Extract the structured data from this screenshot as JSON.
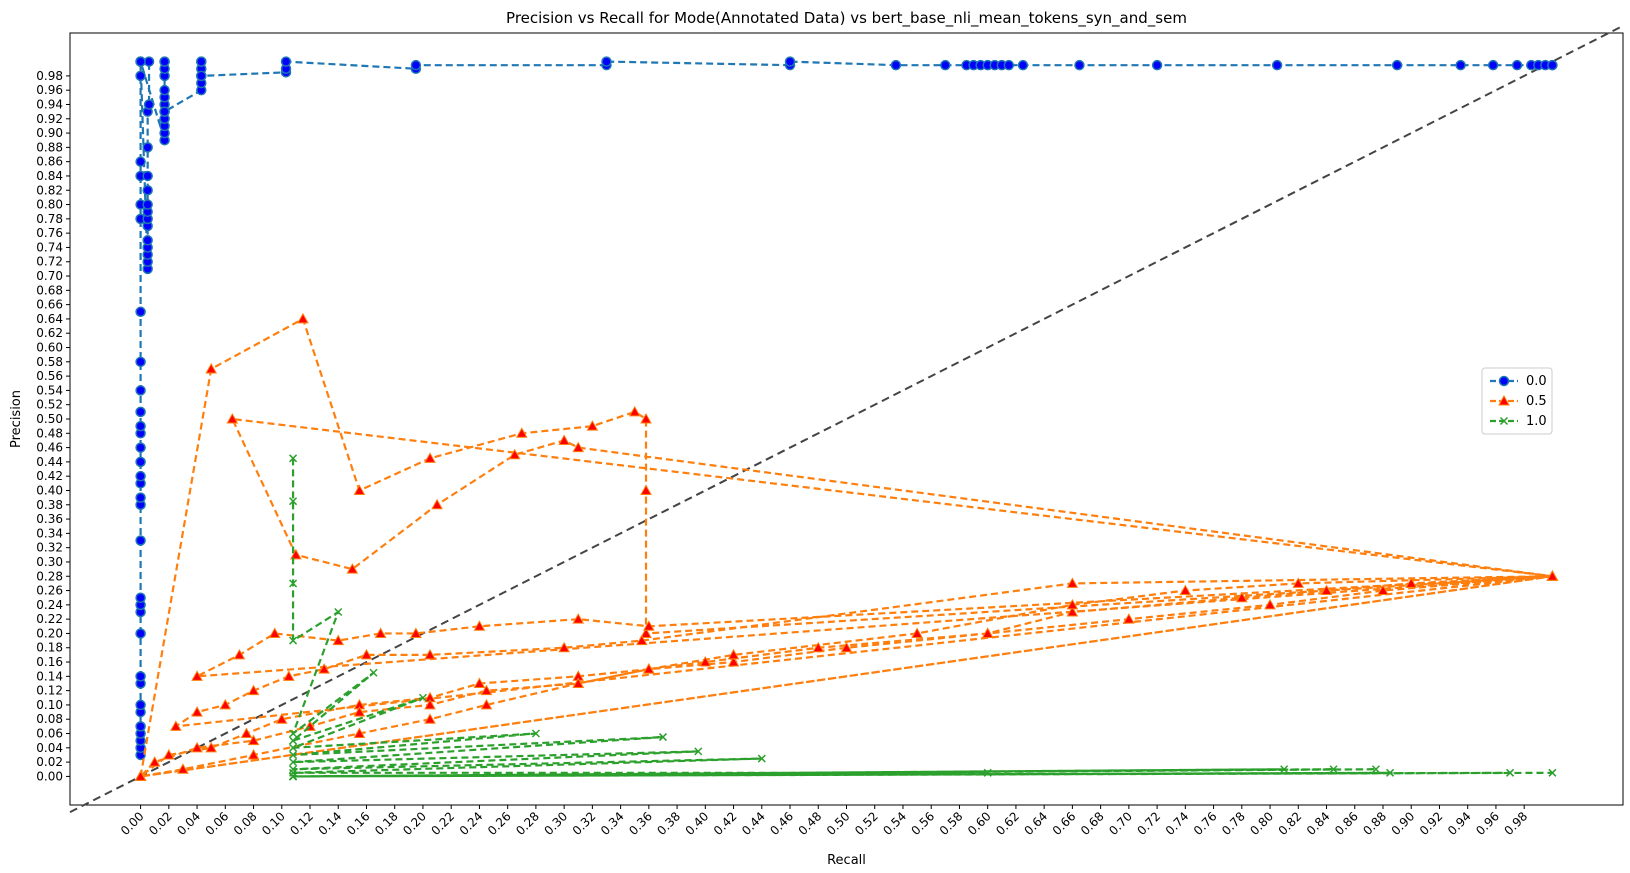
{
  "chart_data": {
    "type": "line",
    "title": "Precision vs Recall for Mode(Annotated Data) vs bert_base_nli_mean_tokens_syn_and_sem",
    "xlabel": "Recall",
    "ylabel": "Precision",
    "xlim": [
      -0.05,
      1.05
    ],
    "ylim": [
      -0.04,
      1.04
    ],
    "xticks": [
      "0.00",
      "0.02",
      "0.04",
      "0.06",
      "0.08",
      "0.10",
      "0.12",
      "0.14",
      "0.16",
      "0.18",
      "0.20",
      "0.22",
      "0.24",
      "0.26",
      "0.28",
      "0.30",
      "0.32",
      "0.34",
      "0.36",
      "0.38",
      "0.40",
      "0.42",
      "0.44",
      "0.46",
      "0.48",
      "0.50",
      "0.52",
      "0.54",
      "0.56",
      "0.58",
      "0.60",
      "0.62",
      "0.64",
      "0.66",
      "0.68",
      "0.70",
      "0.72",
      "0.74",
      "0.76",
      "0.78",
      "0.80",
      "0.82",
      "0.84",
      "0.86",
      "0.88",
      "0.90",
      "0.92",
      "0.94",
      "0.96",
      "0.98"
    ],
    "yticks": [
      "0.00",
      "0.02",
      "0.04",
      "0.06",
      "0.08",
      "0.10",
      "0.12",
      "0.14",
      "0.16",
      "0.18",
      "0.20",
      "0.22",
      "0.24",
      "0.26",
      "0.28",
      "0.30",
      "0.32",
      "0.34",
      "0.36",
      "0.38",
      "0.40",
      "0.42",
      "0.44",
      "0.46",
      "0.48",
      "0.50",
      "0.52",
      "0.54",
      "0.56",
      "0.58",
      "0.60",
      "0.62",
      "0.64",
      "0.66",
      "0.68",
      "0.70",
      "0.72",
      "0.74",
      "0.76",
      "0.78",
      "0.80",
      "0.82",
      "0.84",
      "0.86",
      "0.88",
      "0.90",
      "0.92",
      "0.94",
      "0.96",
      "0.98"
    ],
    "grid": false,
    "legend_position": "center-right",
    "reference_line": {
      "x": [
        -0.05,
        1.05
      ],
      "y": [
        -0.05,
        1.05
      ],
      "color": "#444444",
      "dash": "dashed"
    },
    "series": [
      {
        "name": "0.0",
        "color": "#1f77b4",
        "marker_face": "#0000ff",
        "marker": "circle",
        "x": [
          0.0,
          0.0,
          0.0,
          0.0,
          0.0,
          0.0,
          0.0,
          0.0,
          0.0,
          0.0,
          0.0,
          0.0,
          0.0,
          0.0,
          0.0,
          0.0,
          0.0,
          0.0,
          0.0,
          0.0,
          0.0,
          0.0,
          0.0,
          0.0,
          0.0,
          0.0,
          0.0,
          0.0,
          0.0,
          0.0,
          0.0,
          0.0,
          0.0,
          0.0,
          0.005,
          0.005,
          0.005,
          0.005,
          0.005,
          0.005,
          0.005,
          0.005,
          0.005,
          0.005,
          0.005,
          0.005,
          0.005,
          0.006,
          0.006,
          0.0,
          0.017,
          0.017,
          0.017,
          0.017,
          0.017,
          0.017,
          0.017,
          0.017,
          0.017,
          0.017,
          0.017,
          0.017,
          0.017,
          0.043,
          0.043,
          0.043,
          0.043,
          0.043,
          0.043,
          0.043,
          0.103,
          0.103,
          0.103,
          0.195,
          0.195,
          0.33,
          0.33,
          0.46,
          0.46,
          0.535,
          0.57,
          0.585,
          0.59,
          0.595,
          0.6,
          0.605,
          0.61,
          0.615,
          0.625,
          0.665,
          0.72,
          0.805,
          0.89,
          0.935,
          0.958,
          0.975,
          0.985,
          0.99,
          0.995,
          1.0,
          1.0
        ],
        "y": [
          0.03,
          0.04,
          0.05,
          0.06,
          0.07,
          0.09,
          0.1,
          0.13,
          0.14,
          0.2,
          0.23,
          0.24,
          0.25,
          0.33,
          0.38,
          0.39,
          0.41,
          0.42,
          0.44,
          0.46,
          0.48,
          0.49,
          0.51,
          0.54,
          0.58,
          0.65,
          0.78,
          0.8,
          0.84,
          0.86,
          0.98,
          1.0,
          1.0,
          1.0,
          0.71,
          0.72,
          0.73,
          0.74,
          0.75,
          0.77,
          0.78,
          0.79,
          0.8,
          0.82,
          0.84,
          0.88,
          0.93,
          0.94,
          1.0,
          1.0,
          0.89,
          0.9,
          0.91,
          0.92,
          0.93,
          0.94,
          0.95,
          0.96,
          0.98,
          0.99,
          1.0,
          1.0,
          0.93,
          0.96,
          0.97,
          0.98,
          0.99,
          1.0,
          1.0,
          0.98,
          0.985,
          0.99,
          1.0,
          0.99,
          0.995,
          0.995,
          1.0,
          0.995,
          1.0,
          0.995,
          0.995,
          0.995,
          0.995,
          0.995,
          0.995,
          0.995,
          0.995,
          0.995,
          0.995,
          0.995,
          0.995,
          0.995,
          0.995,
          0.995,
          0.995,
          0.995,
          0.995,
          0.995,
          0.995,
          0.995,
          0.995
        ]
      },
      {
        "name": "0.5",
        "color": "#ff7f0e",
        "marker_face": "#ff0000",
        "marker": "triangle",
        "x": [
          0.0,
          0.05,
          0.115,
          0.155,
          0.205,
          0.27,
          0.32,
          0.35,
          0.358,
          0.358,
          0.358,
          1.0,
          0.065,
          0.11,
          0.15,
          0.21,
          0.265,
          0.3,
          0.31,
          1.0,
          0.04,
          0.07,
          0.095,
          0.14,
          0.17,
          0.195,
          0.24,
          0.31,
          0.36,
          1.0,
          0.025,
          0.04,
          0.06,
          0.08,
          0.105,
          0.13,
          0.16,
          0.205,
          0.3,
          0.355,
          0.66,
          1.0,
          0.0,
          0.02,
          0.05,
          0.075,
          0.1,
          0.155,
          0.205,
          0.24,
          0.31,
          0.36,
          0.4,
          0.48,
          0.6,
          0.66,
          0.78,
          0.84,
          0.9,
          1.0,
          0.0,
          0.01,
          0.04,
          0.08,
          0.12,
          0.155,
          0.205,
          0.245,
          0.31,
          0.36,
          0.42,
          0.5,
          0.6,
          0.7,
          0.8,
          0.88,
          1.0,
          0.0,
          0.03,
          0.08,
          0.155,
          0.205,
          0.245,
          0.31,
          0.36,
          0.42,
          0.55,
          0.66,
          0.74,
          0.82,
          1.0
        ],
        "y": [
          0.0,
          0.57,
          0.64,
          0.4,
          0.445,
          0.48,
          0.49,
          0.51,
          0.5,
          0.4,
          0.2,
          0.28,
          0.5,
          0.31,
          0.29,
          0.38,
          0.45,
          0.47,
          0.46,
          0.28,
          0.14,
          0.17,
          0.2,
          0.19,
          0.2,
          0.2,
          0.21,
          0.22,
          0.21,
          0.28,
          0.07,
          0.09,
          0.1,
          0.12,
          0.14,
          0.15,
          0.17,
          0.17,
          0.18,
          0.19,
          0.27,
          0.28,
          0.0,
          0.03,
          0.04,
          0.06,
          0.08,
          0.1,
          0.11,
          0.13,
          0.14,
          0.15,
          0.16,
          0.18,
          0.2,
          0.23,
          0.25,
          0.26,
          0.27,
          0.28,
          0.0,
          0.02,
          0.04,
          0.05,
          0.07,
          0.09,
          0.1,
          0.12,
          0.13,
          0.15,
          0.16,
          0.18,
          0.2,
          0.22,
          0.24,
          0.26,
          0.28,
          0.0,
          0.01,
          0.03,
          0.06,
          0.08,
          0.1,
          0.13,
          0.15,
          0.17,
          0.2,
          0.24,
          0.26,
          0.27,
          0.28
        ]
      },
      {
        "name": "1.0",
        "color": "#2ca02c",
        "marker_face": "#2ca02c",
        "marker": "x",
        "x": [
          0.108,
          0.108,
          0.108,
          0.108,
          0.14,
          0.108,
          0.165,
          0.108,
          0.2,
          0.108,
          0.28,
          0.108,
          0.37,
          0.108,
          0.395,
          0.108,
          0.44,
          0.108,
          0.6,
          0.108,
          0.81,
          0.108,
          0.845,
          0.108,
          0.875,
          0.108,
          0.885,
          0.108,
          0.97,
          0.108,
          1.0
        ],
        "y": [
          0.445,
          0.385,
          0.27,
          0.19,
          0.23,
          0.06,
          0.145,
          0.05,
          0.11,
          0.04,
          0.06,
          0.03,
          0.055,
          0.02,
          0.035,
          0.01,
          0.025,
          0.005,
          0.005,
          0.0,
          0.01,
          0.0,
          0.01,
          0.0,
          0.01,
          0.0,
          0.005,
          0.0,
          0.005,
          0.0,
          0.005
        ]
      }
    ]
  }
}
